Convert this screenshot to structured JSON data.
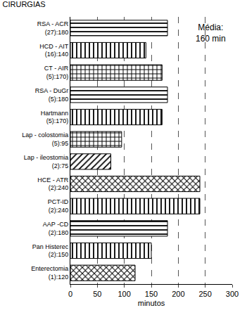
{
  "chart_data": {
    "type": "bar",
    "orientation": "horizontal",
    "title": "CIRURGIAS",
    "x_label": "minutos",
    "categories": [
      "RSA - ACR\n(27):180",
      "HCD - AIT\n(16):140",
      "CT - AIR\n(5):170)",
      "RSA - DuGr\n(5):180",
      "Hartmann\n(5):170)",
      "Lap - colostomia\n(5):95",
      "Lap - ileostomia\n(2):75",
      "HCE - ATR\n(2):240",
      "PCT-ID\n(2):240",
      "AAP -CD\n(2):180",
      "Pan Histerec\n(2):150",
      "Enterectomia\n(1):120"
    ],
    "values": [
      180,
      140,
      170,
      180,
      170,
      95,
      75,
      240,
      240,
      180,
      150,
      120
    ],
    "color": "#000000",
    "xlim": [
      0,
      300
    ],
    "xticks": [
      0,
      50,
      100,
      150,
      200,
      250,
      300
    ],
    "grid": true,
    "data_labels": false,
    "annotations": [
      {
        "text": "Média:\n160 min"
      }
    ]
  }
}
